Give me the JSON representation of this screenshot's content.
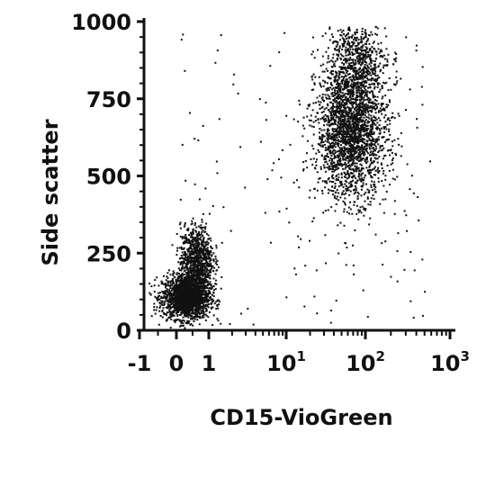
{
  "chart_data": {
    "type": "scatter",
    "xlabel": "CD15-VioGreen",
    "ylabel": "Side scatter",
    "x_scale": "biexponential (linear near 0, log10 above 1)",
    "ylim": [
      0,
      1000
    ],
    "xlim": [
      -1,
      1000
    ],
    "y_ticks": [
      {
        "value": 0,
        "label": "0"
      },
      {
        "value": 250,
        "label": "250"
      },
      {
        "value": 500,
        "label": "500"
      },
      {
        "value": 750,
        "label": "750"
      },
      {
        "value": 1000,
        "label": "1000"
      }
    ],
    "x_ticks": [
      {
        "value": -1,
        "label": "-1",
        "sup": ""
      },
      {
        "value": 0,
        "label": "0",
        "sup": ""
      },
      {
        "value": 1,
        "label": "1",
        "sup": ""
      },
      {
        "value": 10,
        "label": "10",
        "sup": "1"
      },
      {
        "value": 100,
        "label": "10",
        "sup": "2"
      },
      {
        "value": 1000,
        "label": "10",
        "sup": "3"
      }
    ],
    "populations": [
      {
        "name": "",
        "x_center": 0.3,
        "y_center": 110,
        "x_spread": 0.35,
        "y_spread": 35,
        "count": 1900
      },
      {
        "name": "",
        "x_center": 0.6,
        "y_center": 230,
        "x_spread": 0.25,
        "y_spread": 55,
        "count": 900
      },
      {
        "name": "",
        "x_center": 65,
        "y_center": 650,
        "x_spread": 0.22,
        "y_spread": 110,
        "count": 2300
      },
      {
        "name": "",
        "x_center": 75,
        "y_center": 880,
        "x_spread": 0.18,
        "y_spread": 60,
        "count": 500
      }
    ],
    "grid": false,
    "legend": "none"
  }
}
